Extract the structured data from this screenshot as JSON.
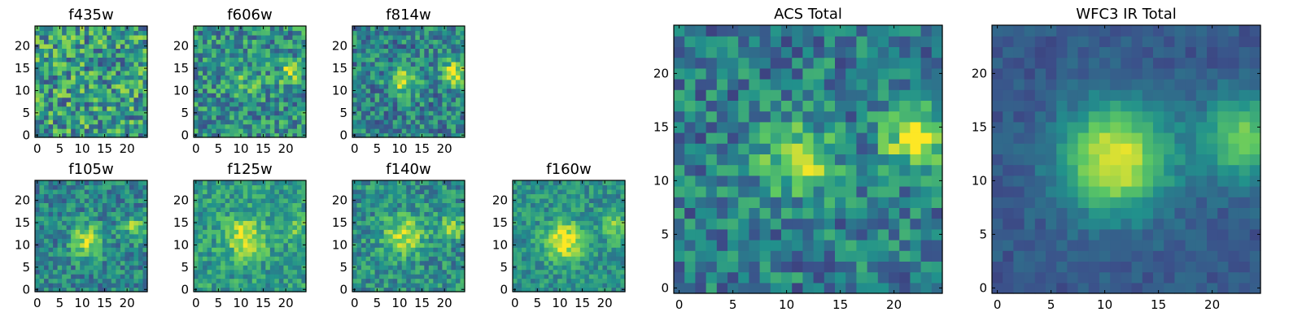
{
  "figure": {
    "colormap": "viridis",
    "colors": [
      "#440154",
      "#3b528b",
      "#21918c",
      "#5ec962",
      "#fde725"
    ]
  },
  "chart_data": [
    {
      "type": "heatmap",
      "title": "f435w",
      "grid_size": 25,
      "xlim": [
        0,
        24
      ],
      "ylim": [
        0,
        24
      ],
      "x_ticks": [
        0,
        5,
        10,
        15,
        20
      ],
      "y_ticks": [
        0,
        5,
        10,
        15,
        20
      ],
      "background": 0.55,
      "noise": 0.32,
      "blobs": [],
      "grid": false,
      "seed": 11
    },
    {
      "type": "heatmap",
      "title": "f606w",
      "grid_size": 25,
      "xlim": [
        0,
        24
      ],
      "ylim": [
        0,
        24
      ],
      "x_ticks": [
        0,
        5,
        10,
        15,
        20
      ],
      "y_ticks": [
        0,
        5,
        10,
        15,
        20
      ],
      "background": 0.5,
      "noise": 0.26,
      "blobs": [
        [
          21,
          14,
          1.8,
          0.35
        ],
        [
          11,
          12,
          2.5,
          0.15
        ]
      ],
      "grid": false,
      "seed": 22
    },
    {
      "type": "heatmap",
      "title": "f814w",
      "grid_size": 25,
      "xlim": [
        0,
        24
      ],
      "ylim": [
        0,
        24
      ],
      "x_ticks": [
        0,
        5,
        10,
        15,
        20
      ],
      "y_ticks": [
        0,
        5,
        10,
        15,
        20
      ],
      "background": 0.45,
      "noise": 0.24,
      "blobs": [
        [
          22,
          14,
          1.8,
          0.5
        ],
        [
          11,
          12,
          2.2,
          0.4
        ]
      ],
      "grid": false,
      "seed": 33
    },
    {
      "type": "heatmap",
      "title": "f105w",
      "grid_size": 25,
      "xlim": [
        0,
        24
      ],
      "ylim": [
        0,
        24
      ],
      "x_ticks": [
        0,
        5,
        10,
        15,
        20
      ],
      "y_ticks": [
        0,
        5,
        10,
        15,
        20
      ],
      "background": 0.45,
      "noise": 0.2,
      "blobs": [
        [
          11,
          11,
          2.5,
          0.45
        ],
        [
          22,
          14,
          2,
          0.35
        ]
      ],
      "grid": false,
      "seed": 44
    },
    {
      "type": "heatmap",
      "title": "f125w",
      "grid_size": 25,
      "xlim": [
        0,
        24
      ],
      "ylim": [
        0,
        24
      ],
      "x_ticks": [
        0,
        5,
        10,
        15,
        20
      ],
      "y_ticks": [
        0,
        5,
        10,
        15,
        20
      ],
      "background": 0.55,
      "noise": 0.18,
      "blobs": [
        [
          11,
          12,
          3,
          0.4
        ],
        [
          22,
          14,
          2,
          0.2
        ]
      ],
      "grid": false,
      "seed": 55
    },
    {
      "type": "heatmap",
      "title": "f140w",
      "grid_size": 25,
      "xlim": [
        0,
        24
      ],
      "ylim": [
        0,
        24
      ],
      "x_ticks": [
        0,
        5,
        10,
        15,
        20
      ],
      "y_ticks": [
        0,
        5,
        10,
        15,
        20
      ],
      "background": 0.5,
      "noise": 0.2,
      "blobs": [
        [
          11,
          12,
          3,
          0.4
        ],
        [
          22,
          14,
          2,
          0.3
        ]
      ],
      "grid": false,
      "seed": 66
    },
    {
      "type": "heatmap",
      "title": "f160w",
      "grid_size": 25,
      "xlim": [
        0,
        24
      ],
      "ylim": [
        0,
        24
      ],
      "x_ticks": [
        0,
        5,
        10,
        15,
        20
      ],
      "y_ticks": [
        0,
        5,
        10,
        15,
        20
      ],
      "background": 0.5,
      "noise": 0.16,
      "blobs": [
        [
          11,
          11,
          3,
          0.5
        ],
        [
          22,
          14,
          2,
          0.3
        ]
      ],
      "grid": false,
      "seed": 77
    },
    {
      "type": "heatmap",
      "title": "ACS Total",
      "grid_size": 25,
      "xlim": [
        0,
        24
      ],
      "ylim": [
        0,
        24
      ],
      "x_ticks": [
        0,
        5,
        10,
        15,
        20
      ],
      "y_ticks": [
        0,
        5,
        10,
        15,
        20
      ],
      "background": 0.42,
      "noise": 0.22,
      "blobs": [
        [
          11,
          12,
          2.2,
          0.5
        ],
        [
          22,
          14,
          2,
          0.55
        ]
      ],
      "grid": false,
      "seed": 88
    },
    {
      "type": "heatmap",
      "title": "WFC3 IR Total",
      "grid_size": 25,
      "xlim": [
        0,
        24
      ],
      "ylim": [
        0,
        24
      ],
      "x_ticks": [
        0,
        5,
        10,
        15,
        20
      ],
      "y_ticks": [
        0,
        5,
        10,
        15,
        20
      ],
      "background": 0.28,
      "noise": 0.07,
      "blobs": [
        [
          11,
          12,
          3.5,
          0.7
        ],
        [
          23,
          14,
          2.8,
          0.5
        ]
      ],
      "grid": false,
      "seed": 99
    }
  ]
}
